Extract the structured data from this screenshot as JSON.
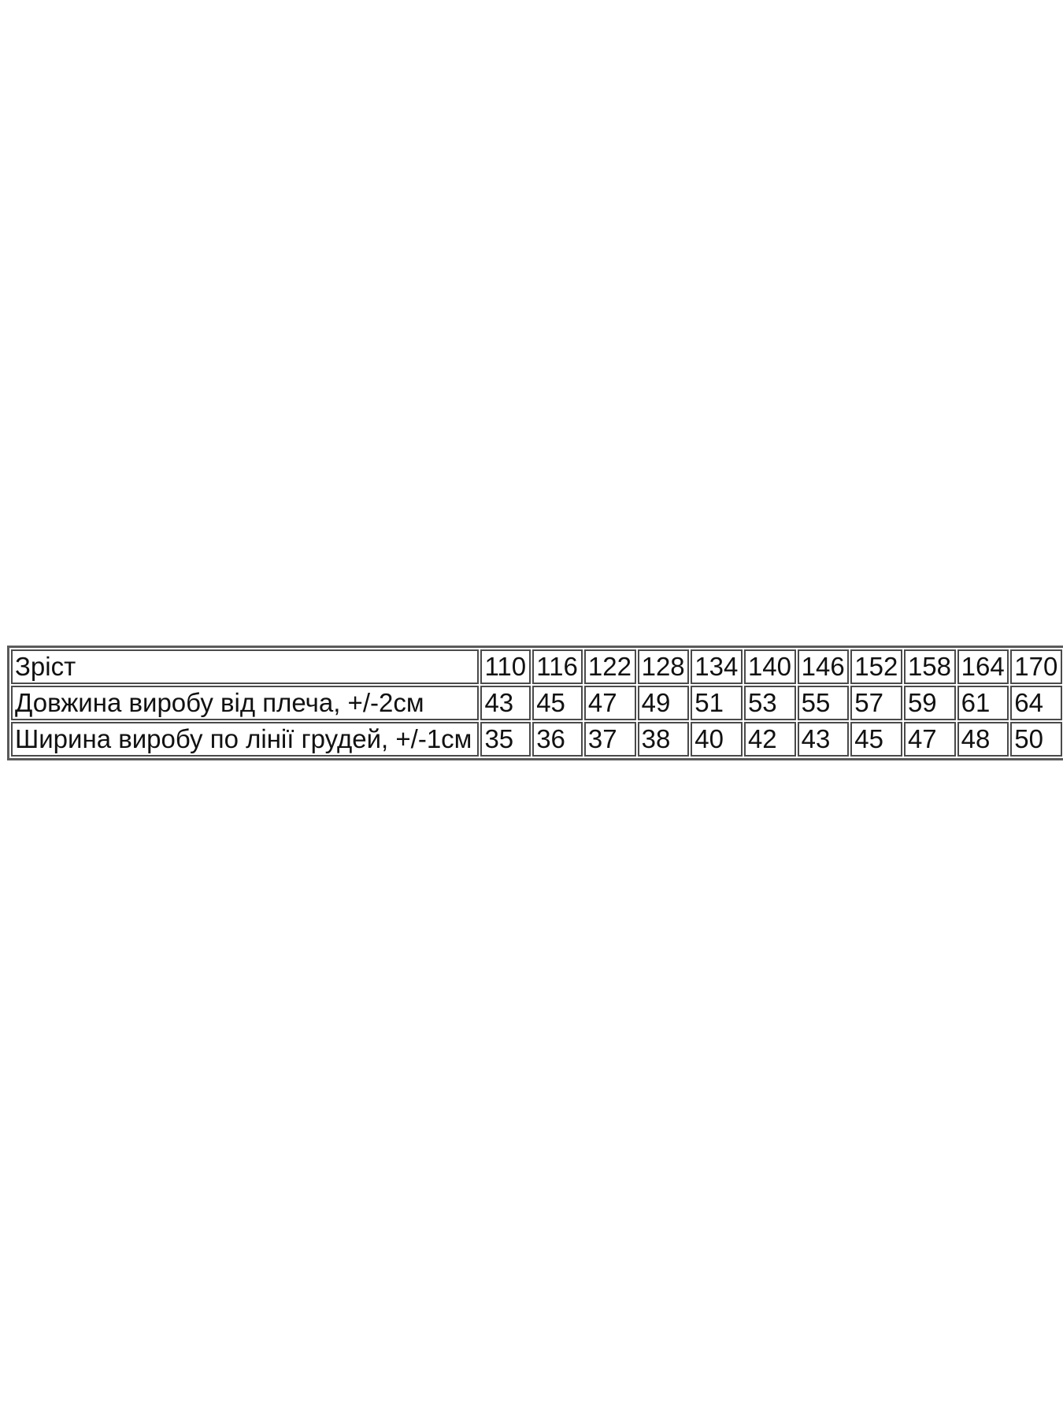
{
  "table": {
    "rows": [
      {
        "label": "Зріст",
        "values": [
          "110",
          "116",
          "122",
          "128",
          "134",
          "140",
          "146",
          "152",
          "158",
          "164",
          "170"
        ]
      },
      {
        "label": "Довжина виробу від плеча, +/-2см",
        "values": [
          "43",
          "45",
          "47",
          "49",
          "51",
          "53",
          "55",
          "57",
          "59",
          "61",
          "64"
        ]
      },
      {
        "label": "Ширина виробу по лінії грудей, +/-1см",
        "values": [
          "35",
          "36",
          "37",
          "38",
          "40",
          "42",
          "43",
          "45",
          "47",
          "48",
          "50"
        ]
      }
    ]
  }
}
